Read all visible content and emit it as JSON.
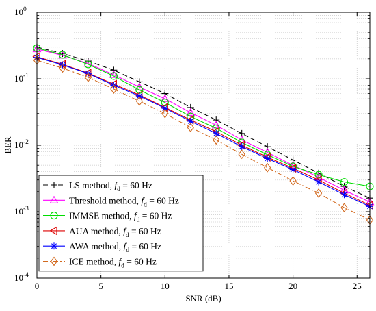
{
  "chart_data": {
    "type": "line",
    "title": "",
    "xlabel": "SNR (dB)",
    "ylabel": "BER",
    "xlim": [
      0,
      26
    ],
    "ylim_exp": [
      -4,
      0
    ],
    "yscale": "log",
    "grid": true,
    "legend_position": "bottom-left",
    "x_ticks": [
      0,
      5,
      10,
      15,
      20,
      25
    ],
    "x_tick_labels": [
      "0",
      "5",
      "10",
      "15",
      "20",
      "25"
    ],
    "y_tick_exponents": [
      0,
      -1,
      -2,
      -3,
      -4
    ],
    "y_tick_base": "10",
    "y_tick_exponent_labels": [
      "0",
      "-1",
      "-2",
      "-3",
      "-4"
    ],
    "x": [
      0,
      2,
      4,
      6,
      8,
      10,
      12,
      14,
      16,
      18,
      20,
      22,
      24,
      26
    ],
    "series": [
      {
        "name": "LS method, f_d = 60 Hz",
        "label_prefix": "LS method, ",
        "label_var": "f",
        "label_sub": "d",
        "label_suffix": " = 60 Hz",
        "color": "#000000",
        "dash": "7,4",
        "marker": "plus",
        "values": [
          0.3,
          0.24,
          0.185,
          0.135,
          0.09,
          0.06,
          0.037,
          0.024,
          0.015,
          0.0095,
          0.006,
          0.0038,
          0.0024,
          0.0016
        ]
      },
      {
        "name": "Threshold method, f_d = 60 Hz",
        "label_prefix": "Threshold method, ",
        "label_var": "f",
        "label_sub": "d",
        "label_suffix": " = 60 Hz",
        "color": "#ff00ff",
        "dash": "",
        "marker": "triangle-up",
        "values": [
          0.28,
          0.225,
          0.17,
          0.115,
          0.075,
          0.05,
          0.031,
          0.02,
          0.012,
          0.0078,
          0.005,
          0.0033,
          0.0021,
          0.0014
        ]
      },
      {
        "name": "IMMSE method, f_d = 60 Hz",
        "label_prefix": "IMMSE method, ",
        "label_var": "f",
        "label_sub": "d",
        "label_suffix": " = 60 Hz",
        "color": "#00dd00",
        "dash": "",
        "marker": "circle",
        "values": [
          0.29,
          0.23,
          0.165,
          0.11,
          0.068,
          0.044,
          0.027,
          0.018,
          0.011,
          0.0072,
          0.0048,
          0.0036,
          0.0028,
          0.0024
        ]
      },
      {
        "name": "AUA method, f_d = 60 Hz",
        "label_prefix": "AUA method, ",
        "label_var": "f",
        "label_sub": "d",
        "label_suffix": " = 60 Hz",
        "color": "#dd0000",
        "dash": "",
        "marker": "triangle-left",
        "values": [
          0.215,
          0.165,
          0.122,
          0.083,
          0.057,
          0.037,
          0.024,
          0.016,
          0.01,
          0.0066,
          0.0045,
          0.003,
          0.0019,
          0.00125
        ]
      },
      {
        "name": "AWA method, f_d = 60 Hz",
        "label_prefix": "AWA method, ",
        "label_var": "f",
        "label_sub": "d",
        "label_suffix": " = 60 Hz",
        "color": "#0000ff",
        "dash": "",
        "marker": "asterisk",
        "values": [
          0.21,
          0.162,
          0.12,
          0.08,
          0.055,
          0.036,
          0.023,
          0.015,
          0.0095,
          0.0063,
          0.0043,
          0.0028,
          0.0018,
          0.0012
        ]
      },
      {
        "name": "ICE method, f_d = 60 Hz",
        "label_prefix": "ICE method, ",
        "label_var": "f",
        "label_sub": "d",
        "label_suffix": " = 60 Hz",
        "color": "#d2691e",
        "dash": "7,3,2,3",
        "marker": "diamond",
        "values": [
          0.19,
          0.145,
          0.105,
          0.07,
          0.046,
          0.03,
          0.0185,
          0.012,
          0.0073,
          0.0046,
          0.0029,
          0.0019,
          0.00115,
          0.00075
        ]
      }
    ]
  }
}
